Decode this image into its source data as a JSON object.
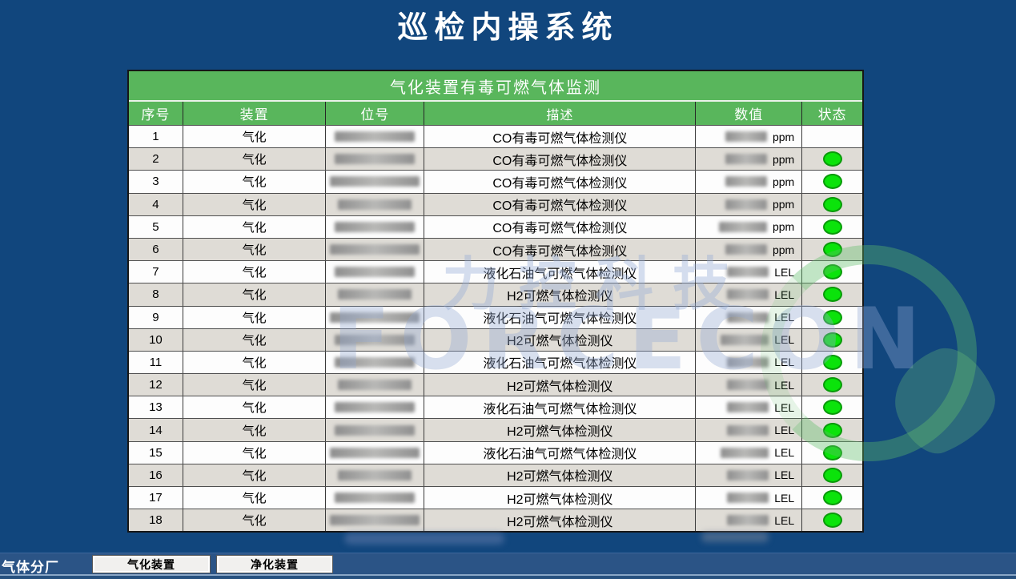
{
  "page": {
    "title": "巡检内操系统"
  },
  "table": {
    "title": "气化装置有毒可燃气体监测",
    "columns": [
      "序号",
      "装置",
      "位号",
      "描述",
      "数值",
      "状态"
    ],
    "rows": [
      {
        "no": "1",
        "device": "气化",
        "tag": "",
        "desc": "CO有毒可燃气体检测仪",
        "value": "",
        "unit": "ppm",
        "status": ""
      },
      {
        "no": "2",
        "device": "气化",
        "tag": "",
        "desc": "CO有毒可燃气体检测仪",
        "value": "",
        "unit": "ppm",
        "status": "ok"
      },
      {
        "no": "3",
        "device": "气化",
        "tag": "",
        "desc": "CO有毒可燃气体检测仪",
        "value": "",
        "unit": "ppm",
        "status": "ok"
      },
      {
        "no": "4",
        "device": "气化",
        "tag": "",
        "desc": "CO有毒可燃气体检测仪",
        "value": "",
        "unit": "ppm",
        "status": "ok"
      },
      {
        "no": "5",
        "device": "气化",
        "tag": "",
        "desc": "CO有毒可燃气体检测仪",
        "value": "",
        "unit": "ppm",
        "status": "ok"
      },
      {
        "no": "6",
        "device": "气化",
        "tag": "",
        "desc": "CO有毒可燃气体检测仪",
        "value": "",
        "unit": "ppm",
        "status": "ok"
      },
      {
        "no": "7",
        "device": "气化",
        "tag": "",
        "desc": "液化石油气可燃气体检测仪",
        "value": "",
        "unit": "LEL",
        "status": "ok"
      },
      {
        "no": "8",
        "device": "气化",
        "tag": "",
        "desc": "H2可燃气体检测仪",
        "value": "",
        "unit": "LEL",
        "status": "ok"
      },
      {
        "no": "9",
        "device": "气化",
        "tag": "",
        "desc": "液化石油气可燃气体检测仪",
        "value": "",
        "unit": "LEL",
        "status": "ok"
      },
      {
        "no": "10",
        "device": "气化",
        "tag": "",
        "desc": "H2可燃气体检测仪",
        "value": "",
        "unit": "LEL",
        "status": "ok"
      },
      {
        "no": "11",
        "device": "气化",
        "tag": "",
        "desc": "液化石油气可燃气体检测仪",
        "value": "",
        "unit": "LEL",
        "status": "ok"
      },
      {
        "no": "12",
        "device": "气化",
        "tag": "",
        "desc": "H2可燃气体检测仪",
        "value": "",
        "unit": "LEL",
        "status": "ok"
      },
      {
        "no": "13",
        "device": "气化",
        "tag": "",
        "desc": "液化石油气可燃气体检测仪",
        "value": "",
        "unit": "LEL",
        "status": "ok"
      },
      {
        "no": "14",
        "device": "气化",
        "tag": "",
        "desc": "H2可燃气体检测仪",
        "value": "",
        "unit": "LEL",
        "status": "ok"
      },
      {
        "no": "15",
        "device": "气化",
        "tag": "",
        "desc": "液化石油气可燃气体检测仪",
        "value": "",
        "unit": "LEL",
        "status": "ok"
      },
      {
        "no": "16",
        "device": "气化",
        "tag": "",
        "desc": "H2可燃气体检测仪",
        "value": "",
        "unit": "LEL",
        "status": "ok"
      },
      {
        "no": "17",
        "device": "气化",
        "tag": "",
        "desc": "H2可燃气体检测仪",
        "value": "",
        "unit": "LEL",
        "status": "ok"
      },
      {
        "no": "18",
        "device": "气化",
        "tag": "",
        "desc": "H2可燃气体检测仪",
        "value": "",
        "unit": "LEL",
        "status": "ok"
      }
    ]
  },
  "watermark": {
    "line1": "力控科技",
    "line2": "FORCECON"
  },
  "footer": {
    "label": "气体分厂",
    "buttons": [
      "气化装置",
      "净化装置"
    ]
  },
  "colors": {
    "background": "#11467d",
    "table_green": "#59b65c",
    "row_alt": "#dfdcd6",
    "status_ok": "#0be30b",
    "footer_bar": "#2b5486"
  }
}
